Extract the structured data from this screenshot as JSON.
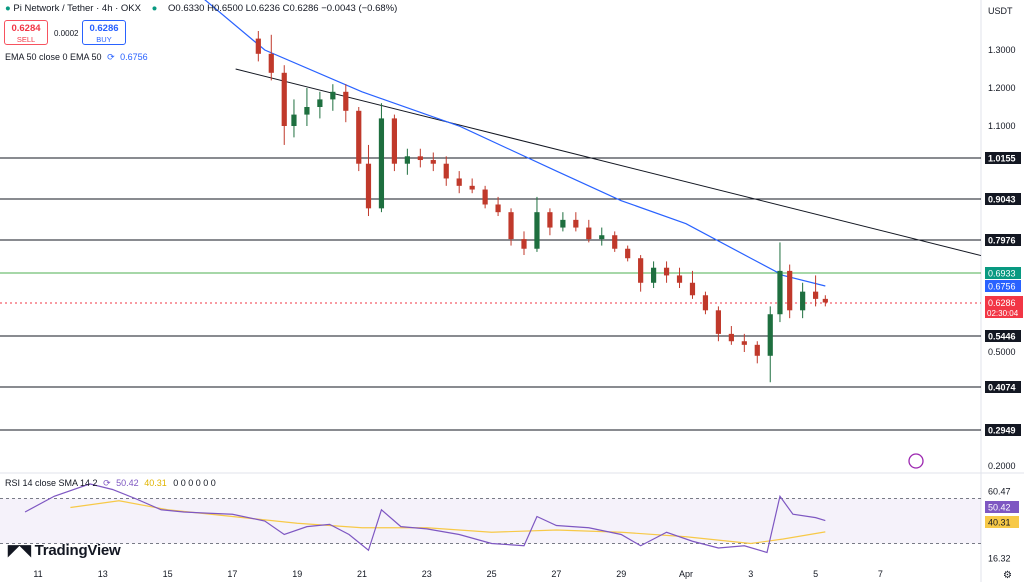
{
  "header": {
    "symbol": "Pi Network / Tether · 4h · OKX",
    "ohlc": "O0.6330 H0.6500 L0.6236 C0.6286 −0.0043 (−0.68%)",
    "sell_price": "0.6284",
    "sell_label": "SELL",
    "spread": "0.0002",
    "buy_price": "0.6286",
    "buy_label": "BUY",
    "ema_label": "EMA 50 close 0 EMA 50",
    "ema_value": "0.6756",
    "currency": "USDT",
    "rsi_label": "RSI 14 close SMA 14 2",
    "rsi_value": "50.42",
    "rsi_sma_value": "40.31",
    "rsi_extra": "0 0 0 0 0 0",
    "brand": "TradingView"
  },
  "colors": {
    "up": "#089981",
    "down": "#f23645",
    "candle_up_fill": "#1e6f3f",
    "candle_down_fill": "#c0392b",
    "ema": "#2962ff",
    "rsi": "#7e57c2",
    "rsi_sma": "#f7c948",
    "level": "#131722",
    "green_level": "#4caf50"
  },
  "chart_data": {
    "type": "candlestick",
    "title": "Pi Network/Tether · 4h · OKX",
    "price_axis_ticks": [
      "1.3000",
      "1.2000",
      "1.1000",
      "0.5000",
      "0.2000"
    ],
    "time_axis_ticks": [
      "11",
      "13",
      "15",
      "17",
      "19",
      "21",
      "23",
      "25",
      "27",
      "29",
      "Apr",
      "3",
      "5",
      "7"
    ],
    "ylim": [
      0.18,
      1.4
    ],
    "horizontal_levels": [
      1.0155,
      0.9043,
      0.7976,
      0.5446,
      0.4074,
      0.2949
    ],
    "level_labels": [
      "1.0155",
      "0.9043",
      "0.7976",
      "0.5446",
      "0.4074",
      "0.2949"
    ],
    "green_level": 0.6933,
    "green_level_label": "0.6933",
    "ema_label_value": "0.6756",
    "current_price": "0.6286",
    "countdown": "02:30:04",
    "trendline": [
      {
        "t": 17.1,
        "v": 1.25
      },
      {
        "t": 36.5,
        "v": 0.78
      }
    ],
    "candles": [
      {
        "t": 17.8,
        "o": 1.33,
        "h": 1.35,
        "l": 1.27,
        "c": 1.29
      },
      {
        "t": 18.2,
        "o": 1.29,
        "h": 1.34,
        "l": 1.22,
        "c": 1.24
      },
      {
        "t": 18.6,
        "o": 1.24,
        "h": 1.26,
        "l": 1.05,
        "c": 1.1
      },
      {
        "t": 18.9,
        "o": 1.1,
        "h": 1.17,
        "l": 1.07,
        "c": 1.13
      },
      {
        "t": 19.3,
        "o": 1.13,
        "h": 1.2,
        "l": 1.1,
        "c": 1.15
      },
      {
        "t": 19.7,
        "o": 1.15,
        "h": 1.19,
        "l": 1.12,
        "c": 1.17
      },
      {
        "t": 20.1,
        "o": 1.17,
        "h": 1.21,
        "l": 1.14,
        "c": 1.19
      },
      {
        "t": 20.5,
        "o": 1.19,
        "h": 1.21,
        "l": 1.11,
        "c": 1.14
      },
      {
        "t": 20.9,
        "o": 1.14,
        "h": 1.15,
        "l": 0.98,
        "c": 1.0
      },
      {
        "t": 21.2,
        "o": 1.0,
        "h": 1.05,
        "l": 0.86,
        "c": 0.88
      },
      {
        "t": 21.6,
        "o": 0.88,
        "h": 1.16,
        "l": 0.87,
        "c": 1.12
      },
      {
        "t": 22.0,
        "o": 1.12,
        "h": 1.13,
        "l": 0.98,
        "c": 1.0
      },
      {
        "t": 22.4,
        "o": 1.0,
        "h": 1.04,
        "l": 0.97,
        "c": 1.02
      },
      {
        "t": 22.8,
        "o": 1.02,
        "h": 1.04,
        "l": 0.99,
        "c": 1.01
      },
      {
        "t": 23.2,
        "o": 1.01,
        "h": 1.03,
        "l": 0.98,
        "c": 1.0
      },
      {
        "t": 23.6,
        "o": 1.0,
        "h": 1.02,
        "l": 0.94,
        "c": 0.96
      },
      {
        "t": 24.0,
        "o": 0.96,
        "h": 0.98,
        "l": 0.92,
        "c": 0.94
      },
      {
        "t": 24.4,
        "o": 0.94,
        "h": 0.96,
        "l": 0.92,
        "c": 0.93
      },
      {
        "t": 24.8,
        "o": 0.93,
        "h": 0.94,
        "l": 0.88,
        "c": 0.89
      },
      {
        "t": 25.2,
        "o": 0.89,
        "h": 0.91,
        "l": 0.86,
        "c": 0.87
      },
      {
        "t": 25.6,
        "o": 0.87,
        "h": 0.88,
        "l": 0.78,
        "c": 0.8
      },
      {
        "t": 26.0,
        "o": 0.8,
        "h": 0.82,
        "l": 0.75,
        "c": 0.77
      },
      {
        "t": 26.4,
        "o": 0.77,
        "h": 0.91,
        "l": 0.76,
        "c": 0.87
      },
      {
        "t": 26.8,
        "o": 0.87,
        "h": 0.88,
        "l": 0.81,
        "c": 0.83
      },
      {
        "t": 27.2,
        "o": 0.83,
        "h": 0.87,
        "l": 0.82,
        "c": 0.85
      },
      {
        "t": 27.6,
        "o": 0.85,
        "h": 0.87,
        "l": 0.82,
        "c": 0.83
      },
      {
        "t": 28.0,
        "o": 0.83,
        "h": 0.85,
        "l": 0.79,
        "c": 0.8
      },
      {
        "t": 28.4,
        "o": 0.8,
        "h": 0.83,
        "l": 0.78,
        "c": 0.81
      },
      {
        "t": 28.8,
        "o": 0.81,
        "h": 0.82,
        "l": 0.76,
        "c": 0.77
      },
      {
        "t": 29.2,
        "o": 0.77,
        "h": 0.78,
        "l": 0.73,
        "c": 0.74
      },
      {
        "t": 29.6,
        "o": 0.74,
        "h": 0.75,
        "l": 0.66,
        "c": 0.68
      },
      {
        "t": 30.0,
        "o": 0.68,
        "h": 0.73,
        "l": 0.67,
        "c": 0.71
      },
      {
        "t": 30.4,
        "o": 0.71,
        "h": 0.73,
        "l": 0.68,
        "c": 0.69
      },
      {
        "t": 30.8,
        "o": 0.69,
        "h": 0.71,
        "l": 0.67,
        "c": 0.68
      },
      {
        "t": 31.2,
        "o": 0.68,
        "h": 0.7,
        "l": 0.64,
        "c": 0.65
      },
      {
        "t": 31.6,
        "o": 0.65,
        "h": 0.66,
        "l": 0.6,
        "c": 0.61
      },
      {
        "t": 32.0,
        "o": 0.61,
        "h": 0.62,
        "l": 0.53,
        "c": 0.55
      },
      {
        "t": 32.4,
        "o": 0.55,
        "h": 0.57,
        "l": 0.52,
        "c": 0.53
      },
      {
        "t": 32.8,
        "o": 0.53,
        "h": 0.55,
        "l": 0.5,
        "c": 0.52
      },
      {
        "t": 33.2,
        "o": 0.52,
        "h": 0.53,
        "l": 0.47,
        "c": 0.49
      },
      {
        "t": 33.6,
        "o": 0.49,
        "h": 0.62,
        "l": 0.42,
        "c": 0.6
      },
      {
        "t": 33.9,
        "o": 0.6,
        "h": 0.79,
        "l": 0.58,
        "c": 0.7
      },
      {
        "t": 34.2,
        "o": 0.7,
        "h": 0.72,
        "l": 0.59,
        "c": 0.61
      },
      {
        "t": 34.6,
        "o": 0.61,
        "h": 0.68,
        "l": 0.59,
        "c": 0.66
      },
      {
        "t": 35.0,
        "o": 0.66,
        "h": 0.69,
        "l": 0.62,
        "c": 0.64
      },
      {
        "t": 35.3,
        "o": 0.64,
        "h": 0.65,
        "l": 0.62,
        "c": 0.63
      }
    ],
    "ema_series": [
      {
        "t": 14.5,
        "v": 1.55
      },
      {
        "t": 18.0,
        "v": 1.3
      },
      {
        "t": 21.0,
        "v": 1.19
      },
      {
        "t": 24.0,
        "v": 1.1
      },
      {
        "t": 27.0,
        "v": 0.98
      },
      {
        "t": 29.0,
        "v": 0.9
      },
      {
        "t": 31.0,
        "v": 0.84
      },
      {
        "t": 33.0,
        "v": 0.74
      },
      {
        "t": 34.0,
        "v": 0.69
      },
      {
        "t": 35.3,
        "v": 0.6756
      }
    ],
    "rsi": {
      "ylim": [
        10,
        90
      ],
      "levels": [
        70,
        30
      ],
      "level_labels": [
        "60.47",
        "50.42",
        "40.31",
        "16.32"
      ],
      "rsi_series": [
        {
          "t": 10.6,
          "v": 58
        },
        {
          "t": 11.5,
          "v": 72
        },
        {
          "t": 12.6,
          "v": 83
        },
        {
          "t": 13.3,
          "v": 78
        },
        {
          "t": 14.0,
          "v": 70
        },
        {
          "t": 14.8,
          "v": 60
        },
        {
          "t": 15.5,
          "v": 58
        },
        {
          "t": 16.2,
          "v": 57
        },
        {
          "t": 17.0,
          "v": 56
        },
        {
          "t": 18.0,
          "v": 50
        },
        {
          "t": 18.6,
          "v": 38
        },
        {
          "t": 19.3,
          "v": 45
        },
        {
          "t": 20.0,
          "v": 47
        },
        {
          "t": 20.6,
          "v": 38
        },
        {
          "t": 21.2,
          "v": 24
        },
        {
          "t": 21.6,
          "v": 60
        },
        {
          "t": 22.2,
          "v": 45
        },
        {
          "t": 23.0,
          "v": 43
        },
        {
          "t": 24.0,
          "v": 38
        },
        {
          "t": 25.0,
          "v": 30
        },
        {
          "t": 26.0,
          "v": 28
        },
        {
          "t": 26.4,
          "v": 54
        },
        {
          "t": 27.0,
          "v": 46
        },
        {
          "t": 28.0,
          "v": 44
        },
        {
          "t": 29.0,
          "v": 38
        },
        {
          "t": 29.6,
          "v": 28
        },
        {
          "t": 30.4,
          "v": 40
        },
        {
          "t": 31.2,
          "v": 32
        },
        {
          "t": 32.0,
          "v": 26
        },
        {
          "t": 32.8,
          "v": 28
        },
        {
          "t": 33.5,
          "v": 22
        },
        {
          "t": 33.9,
          "v": 72
        },
        {
          "t": 34.3,
          "v": 56
        },
        {
          "t": 35.0,
          "v": 53
        },
        {
          "t": 35.3,
          "v": 50.42
        }
      ],
      "sma_series": [
        {
          "t": 12.0,
          "v": 62
        },
        {
          "t": 13.5,
          "v": 68
        },
        {
          "t": 15.0,
          "v": 60
        },
        {
          "t": 17.0,
          "v": 54
        },
        {
          "t": 19.0,
          "v": 48
        },
        {
          "t": 21.0,
          "v": 44
        },
        {
          "t": 23.0,
          "v": 44
        },
        {
          "t": 25.0,
          "v": 40
        },
        {
          "t": 27.0,
          "v": 42
        },
        {
          "t": 29.0,
          "v": 40
        },
        {
          "t": 31.0,
          "v": 36
        },
        {
          "t": 33.0,
          "v": 30
        },
        {
          "t": 34.0,
          "v": 34
        },
        {
          "t": 35.3,
          "v": 40.31
        }
      ]
    }
  }
}
